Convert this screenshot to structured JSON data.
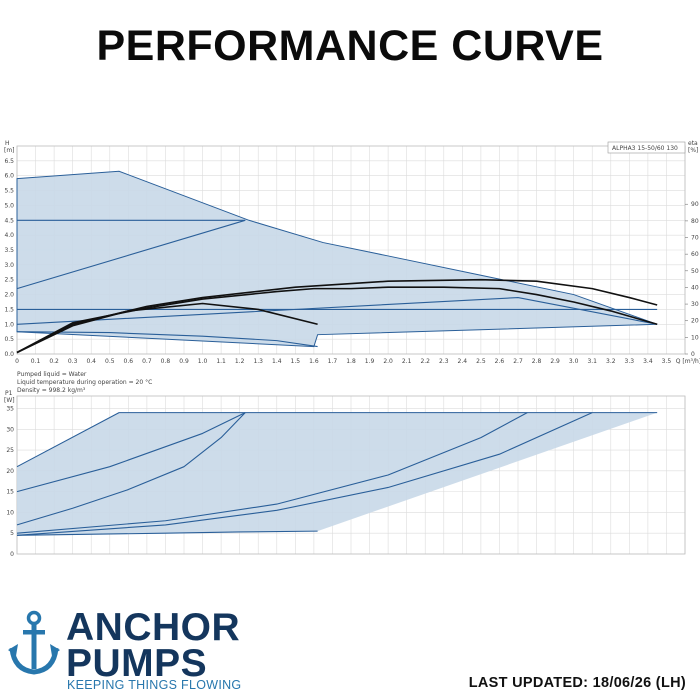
{
  "page": {
    "title": "PERFORMANCE CURVE",
    "last_updated": "LAST UPDATED: 18/06/26 (LH)"
  },
  "brand": {
    "line1": "ANCHOR",
    "line2": "PUMPS",
    "tagline": "KEEPING THINGS FLOWING",
    "colors": {
      "navy": "#14365d",
      "accent": "#2877ad"
    },
    "icon": "anchor-icon"
  },
  "colors": {
    "line": "#2a5f99",
    "fill": "#c8d8e8",
    "grid": "#dcdcdc",
    "black": "#111111"
  },
  "chart_data": [
    {
      "type": "line",
      "title": "",
      "model_label": "ALPHA3 15-50/60 130",
      "xlabel": "Q [m³/h]",
      "ylabel": "H\n[m]",
      "y2label": "eta\n[%]",
      "xlim": [
        0,
        3.6
      ],
      "ylim": [
        0,
        7.0
      ],
      "y2lim": [
        0,
        100
      ],
      "xticks": [
        "0",
        "0.1",
        "0.2",
        "0.3",
        "0.4",
        "0.5",
        "0.6",
        "0.7",
        "0.8",
        "0.9",
        "1.0",
        "1.1",
        "1.2",
        "1.3",
        "1.4",
        "1.5",
        "1.6",
        "1.7",
        "1.8",
        "1.9",
        "2.0",
        "2.1",
        "2.2",
        "2.3",
        "2.4",
        "2.5",
        "2.6",
        "2.7",
        "2.8",
        "2.9",
        "3.0",
        "3.1",
        "3.2",
        "3.3",
        "3.4",
        "3.5"
      ],
      "yticks": [
        "0.0",
        "0.5",
        "1.0",
        "1.5",
        "2.0",
        "2.5",
        "3.0",
        "3.5",
        "4.0",
        "4.5",
        "5.0",
        "5.5",
        "6.0",
        "6.5"
      ],
      "y2ticks": [
        "0",
        "10",
        "20",
        "30",
        "40",
        "50",
        "60",
        "70",
        "80",
        "90"
      ],
      "grid": true,
      "envelope": {
        "x": [
          0,
          0.55,
          1.25,
          1.65,
          2.0,
          2.5,
          3.0,
          3.45,
          3.45,
          1.62,
          1.6,
          0
        ],
        "y": [
          5.9,
          6.15,
          4.5,
          3.75,
          3.3,
          2.65,
          2.0,
          1.0,
          1.0,
          0.65,
          0.25,
          0.75
        ]
      },
      "series": [
        {
          "x": [
            0,
            1.23
          ],
          "y": [
            4.5,
            4.5
          ]
        },
        {
          "x": [
            0,
            1.23
          ],
          "y": [
            2.2,
            4.5
          ]
        },
        {
          "x": [
            0,
            3.45
          ],
          "y": [
            1.5,
            1.5
          ]
        },
        {
          "x": [
            0,
            2.7,
            3.45
          ],
          "y": [
            1.0,
            1.9,
            1.0
          ]
        },
        {
          "x": [
            0,
            0.5,
            1.0,
            1.4,
            1.62
          ],
          "y": [
            0.75,
            0.72,
            0.6,
            0.45,
            0.25
          ]
        },
        {
          "x": [
            0,
            0.3,
            0.6,
            1.0,
            1.3,
            1.62
          ],
          "y": [
            0.05,
            0.95,
            1.45,
            1.7,
            1.5,
            1.0
          ]
        },
        {
          "x": [
            0,
            0.3,
            0.7,
            1.0,
            1.4,
            1.6,
            1.8,
            2.0,
            2.3,
            2.6,
            2.8,
            3.0,
            3.2,
            3.45
          ],
          "y": [
            0.05,
            1.05,
            1.55,
            1.85,
            2.1,
            2.2,
            2.2,
            2.25,
            2.25,
            2.2,
            2.0,
            1.75,
            1.45,
            1.0
          ]
        },
        {
          "x": [
            0,
            0.3,
            0.7,
            1.0,
            1.5,
            2.0,
            2.5,
            2.8,
            3.1,
            3.3,
            3.45
          ],
          "y": [
            0.05,
            1.0,
            1.6,
            1.9,
            2.25,
            2.45,
            2.5,
            2.45,
            2.2,
            1.9,
            1.65
          ]
        }
      ]
    },
    {
      "type": "line",
      "title": "",
      "notes": [
        "Pumped liquid = Water",
        "Liquid temperature during operation = 20 °C",
        "Density = 998.2 kg/m³"
      ],
      "ylabel": "P1\n[W]",
      "xlim": [
        0,
        3.6
      ],
      "ylim": [
        0,
        38
      ],
      "yticks": [
        "0",
        "5",
        "10",
        "15",
        "20",
        "25",
        "30",
        "35"
      ],
      "grid": true,
      "envelope": {
        "x": [
          0,
          0.55,
          3.45,
          1.62,
          0,
          0
        ],
        "y": [
          21,
          34,
          34,
          5.5,
          4.5,
          21
        ]
      },
      "series": [
        {
          "x": [
            0,
            0.55,
            3.45
          ],
          "y": [
            21,
            34,
            34
          ]
        },
        {
          "x": [
            0,
            0.5,
            1.0,
            1.23
          ],
          "y": [
            15,
            21,
            29,
            34
          ]
        },
        {
          "x": [
            0,
            0.3,
            0.6,
            0.9,
            1.1,
            1.23
          ],
          "y": [
            7,
            11,
            15.5,
            21,
            28,
            34
          ]
        },
        {
          "x": [
            0,
            0.8,
            1.4,
            2.0,
            2.5,
            2.75
          ],
          "y": [
            5,
            8,
            12,
            19,
            28,
            34
          ]
        },
        {
          "x": [
            0,
            0.8,
            1.4,
            2.0,
            2.6,
            3.1
          ],
          "y": [
            4.5,
            7,
            10.5,
            16,
            24,
            34
          ]
        },
        {
          "x": [
            0,
            0.8,
            1.2,
            1.62
          ],
          "y": [
            4.5,
            5,
            5.3,
            5.5
          ]
        }
      ]
    }
  ]
}
